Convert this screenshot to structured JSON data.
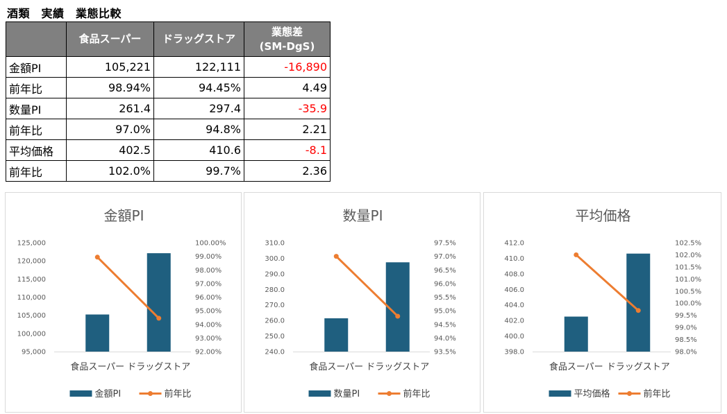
{
  "sheet_title": "酒類　実績　業態比較",
  "table": {
    "headers": [
      "",
      "食品スーパー",
      "ドラッグストア",
      "業態差\n(SM-DgS)"
    ],
    "rows": [
      {
        "label": "金額PI",
        "sm": "105,221",
        "dgs": "122,111",
        "diff": "-16,890",
        "neg": true
      },
      {
        "label": "前年比",
        "sm": "98.94%",
        "dgs": "94.45%",
        "diff": "4.49",
        "neg": false
      },
      {
        "label": "数量PI",
        "sm": "261.4",
        "dgs": "297.4",
        "diff": "-35.9",
        "neg": true
      },
      {
        "label": "前年比",
        "sm": "97.0%",
        "dgs": "94.8%",
        "diff": "2.21",
        "neg": false
      },
      {
        "label": "平均価格",
        "sm": "402.5",
        "dgs": "410.6",
        "diff": "-8.1",
        "neg": true
      },
      {
        "label": "前年比",
        "sm": "102.0%",
        "dgs": "99.7%",
        "diff": "2.36",
        "neg": false
      }
    ]
  },
  "colors": {
    "bar": "#1f5f7f",
    "line": "#ed7d31",
    "negative": "#ff0000",
    "header_bg": "#808080"
  },
  "chart_data": [
    {
      "type": "bar+line",
      "title": "金額PI",
      "categories": [
        "食品スーパー",
        "ドラッグストア"
      ],
      "series": [
        {
          "name": "金額PI",
          "kind": "bar",
          "axis": "left",
          "values": [
            105221,
            122111
          ]
        },
        {
          "name": "前年比",
          "kind": "line",
          "axis": "right",
          "values": [
            98.94,
            94.45
          ]
        }
      ],
      "left_axis": {
        "min": 95000,
        "max": 125000,
        "step": 5000,
        "ticks": [
          "95,000",
          "100,000",
          "105,000",
          "110,000",
          "115,000",
          "120,000",
          "125,000"
        ]
      },
      "right_axis": {
        "min": 92.0,
        "max": 100.0,
        "step": 1.0,
        "ticks": [
          "92.00%",
          "93.00%",
          "94.00%",
          "95.00%",
          "96.00%",
          "97.00%",
          "98.00%",
          "99.00%",
          "100.00%"
        ]
      },
      "legend": "bottom",
      "grid": false
    },
    {
      "type": "bar+line",
      "title": "数量PI",
      "categories": [
        "食品スーパー",
        "ドラッグストア"
      ],
      "series": [
        {
          "name": "数量PI",
          "kind": "bar",
          "axis": "left",
          "values": [
            261.4,
            297.4
          ]
        },
        {
          "name": "前年比",
          "kind": "line",
          "axis": "right",
          "values": [
            97.0,
            94.8
          ]
        }
      ],
      "left_axis": {
        "min": 240,
        "max": 310,
        "step": 10,
        "ticks": [
          "240.0",
          "250.0",
          "260.0",
          "270.0",
          "280.0",
          "290.0",
          "300.0",
          "310.0"
        ]
      },
      "right_axis": {
        "min": 93.5,
        "max": 97.5,
        "step": 0.5,
        "ticks": [
          "93.5%",
          "94.0%",
          "94.5%",
          "95.0%",
          "95.5%",
          "96.0%",
          "96.5%",
          "97.0%",
          "97.5%"
        ]
      },
      "legend": "bottom",
      "grid": false
    },
    {
      "type": "bar+line",
      "title": "平均価格",
      "categories": [
        "食品スーパー",
        "ドラッグストア"
      ],
      "series": [
        {
          "name": "平均価格",
          "kind": "bar",
          "axis": "left",
          "values": [
            402.5,
            410.6
          ]
        },
        {
          "name": "前年比",
          "kind": "line",
          "axis": "right",
          "values": [
            102.0,
            99.7
          ]
        }
      ],
      "left_axis": {
        "min": 398,
        "max": 412,
        "step": 2,
        "ticks": [
          "398.0",
          "400.0",
          "402.0",
          "404.0",
          "406.0",
          "408.0",
          "410.0",
          "412.0"
        ]
      },
      "right_axis": {
        "min": 98.0,
        "max": 102.5,
        "step": 0.5,
        "ticks": [
          "98.0%",
          "98.5%",
          "99.0%",
          "99.5%",
          "100.0%",
          "100.5%",
          "101.0%",
          "101.5%",
          "102.0%",
          "102.5%"
        ]
      },
      "legend": "bottom",
      "grid": false
    }
  ]
}
